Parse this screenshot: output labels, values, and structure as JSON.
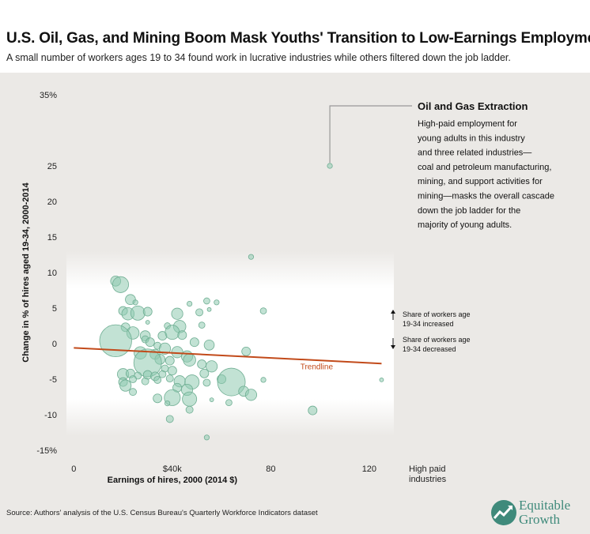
{
  "header": {
    "title": "U.S. Oil, Gas, and Mining Boom Mask Youths' Transition to Low-Earnings Employment",
    "subtitle": "A small number of workers ages 19 to 34 found work in lucrative industries while others filtered down the job ladder."
  },
  "footer": {
    "source": "Source: Authors' analysis of the U.S. Census Bureau's Quarterly Workforce Indicators dataset",
    "logo_line1": "Equitable",
    "logo_line2": "Growth"
  },
  "annotation": {
    "title": "Oil and Gas Extraction",
    "lines": [
      "High-paid employment for",
      "young adults in this industry",
      "and three related industries—",
      "coal and petroleum manufacturing,",
      "mining, and support activities for",
      "mining—masks the overall cascade",
      "down the job ladder for the",
      "majority of young adults."
    ]
  },
  "side_notes": {
    "increased": [
      "Share of workers age",
      "19-34 increased"
    ],
    "decreased": [
      "Share of workers age",
      "19-34 decreased"
    ]
  },
  "colors": {
    "bubble_fill": "#8fcbb0",
    "bubble_stroke": "#6fae93",
    "trendline": "#c24a1a",
    "background": "#ebe9e6"
  },
  "chart_data": {
    "type": "scatter",
    "title": "",
    "xlabel": "Earnings of hires, 2000 (2014 $)",
    "ylabel": "Change in % of hires aged 19-34, 2000-2014",
    "xlim": [
      -3,
      130
    ],
    "ylim": [
      -15,
      35
    ],
    "x_ticks": [
      {
        "value": 0,
        "label": "0"
      },
      {
        "value": 40,
        "label": "$40k"
      },
      {
        "value": 80,
        "label": "80"
      },
      {
        "value": 120,
        "label": "120"
      }
    ],
    "x_extra_label": [
      "High paid",
      "industries"
    ],
    "y_ticks": [
      {
        "value": 35,
        "label": "35%"
      },
      {
        "value": 25,
        "label": "25"
      },
      {
        "value": 20,
        "label": "20"
      },
      {
        "value": 15,
        "label": "15"
      },
      {
        "value": 10,
        "label": "10"
      },
      {
        "value": 5,
        "label": "5"
      },
      {
        "value": 0,
        "label": "0"
      },
      {
        "value": -5,
        "label": "-5"
      },
      {
        "value": -10,
        "label": "-10"
      },
      {
        "value": -15,
        "label": "-15%"
      }
    ],
    "trendline": {
      "label": "Trendline",
      "x": [
        0,
        125
      ],
      "y": [
        -0.6,
        -2.8
      ]
    },
    "points": [
      {
        "x": 104,
        "y": 25,
        "size": 1
      },
      {
        "x": 72,
        "y": 12.2,
        "size": 1
      },
      {
        "x": 17,
        "y": 8.8,
        "size": 4
      },
      {
        "x": 19,
        "y": 8.3,
        "size": 10
      },
      {
        "x": 23,
        "y": 6.2,
        "size": 4
      },
      {
        "x": 25,
        "y": 5.8,
        "size": 1
      },
      {
        "x": 47,
        "y": 5.6,
        "size": 1
      },
      {
        "x": 54,
        "y": 6.0,
        "size": 1.5
      },
      {
        "x": 58,
        "y": 5.8,
        "size": 1
      },
      {
        "x": 55,
        "y": 4.8,
        "size": 0.6
      },
      {
        "x": 20,
        "y": 4.6,
        "size": 3
      },
      {
        "x": 22,
        "y": 4.2,
        "size": 6
      },
      {
        "x": 26,
        "y": 4.3,
        "size": 8
      },
      {
        "x": 30,
        "y": 4.5,
        "size": 3
      },
      {
        "x": 42,
        "y": 4.2,
        "size": 5
      },
      {
        "x": 51,
        "y": 4.4,
        "size": 2
      },
      {
        "x": 77,
        "y": 4.6,
        "size": 1.5
      },
      {
        "x": 30,
        "y": 3.0,
        "size": 0.6
      },
      {
        "x": 38,
        "y": 2.5,
        "size": 1.5
      },
      {
        "x": 43,
        "y": 2.4,
        "size": 6
      },
      {
        "x": 52,
        "y": 2.6,
        "size": 1.5
      },
      {
        "x": 21,
        "y": 2.3,
        "size": 3
      },
      {
        "x": 24,
        "y": 1.5,
        "size": 6
      },
      {
        "x": 29,
        "y": 1.1,
        "size": 4
      },
      {
        "x": 36,
        "y": 1.1,
        "size": 3
      },
      {
        "x": 40,
        "y": 1.6,
        "size": 8
      },
      {
        "x": 44,
        "y": 1.2,
        "size": 3
      },
      {
        "x": 49,
        "y": 0.2,
        "size": 3
      },
      {
        "x": 17,
        "y": 0.4,
        "size": 40
      },
      {
        "x": 29,
        "y": 0.6,
        "size": 2
      },
      {
        "x": 31,
        "y": 0.2,
        "size": 3
      },
      {
        "x": 34,
        "y": -0.3,
        "size": 2
      },
      {
        "x": 37,
        "y": -0.7,
        "size": 5
      },
      {
        "x": 55,
        "y": -0.2,
        "size": 4
      },
      {
        "x": 42,
        "y": -1.2,
        "size": 5
      },
      {
        "x": 27,
        "y": -1.3,
        "size": 6
      },
      {
        "x": 33,
        "y": -1.5,
        "size": 4
      },
      {
        "x": 46,
        "y": -1.8,
        "size": 5
      },
      {
        "x": 70,
        "y": -1.1,
        "size": 3
      },
      {
        "x": 35,
        "y": -2.2,
        "size": 4
      },
      {
        "x": 39,
        "y": -2.4,
        "size": 3
      },
      {
        "x": 47,
        "y": -2.3,
        "size": 6
      },
      {
        "x": 30,
        "y": -2.7,
        "size": 30
      },
      {
        "x": 52,
        "y": -2.9,
        "size": 3
      },
      {
        "x": 56,
        "y": -3.2,
        "size": 5
      },
      {
        "x": 37,
        "y": -3.5,
        "size": 2
      },
      {
        "x": 40,
        "y": -3.8,
        "size": 3
      },
      {
        "x": 20,
        "y": -4.3,
        "size": 5
      },
      {
        "x": 23,
        "y": -4.2,
        "size": 3
      },
      {
        "x": 26,
        "y": -4.5,
        "size": 2
      },
      {
        "x": 30,
        "y": -4.4,
        "size": 3
      },
      {
        "x": 33,
        "y": -4.6,
        "size": 3
      },
      {
        "x": 36,
        "y": -4.3,
        "size": 2
      },
      {
        "x": 53,
        "y": -4.2,
        "size": 3
      },
      {
        "x": 39,
        "y": -4.9,
        "size": 2
      },
      {
        "x": 43,
        "y": -5.3,
        "size": 5
      },
      {
        "x": 48,
        "y": -5.4,
        "size": 8
      },
      {
        "x": 20,
        "y": -5.4,
        "size": 3
      },
      {
        "x": 21,
        "y": -5.9,
        "size": 5
      },
      {
        "x": 24,
        "y": -5.0,
        "size": 2
      },
      {
        "x": 29,
        "y": -5.3,
        "size": 2
      },
      {
        "x": 34,
        "y": -5.1,
        "size": 2
      },
      {
        "x": 54,
        "y": -5.5,
        "size": 2
      },
      {
        "x": 60,
        "y": -5.0,
        "size": 3
      },
      {
        "x": 64,
        "y": -5.4,
        "size": 30
      },
      {
        "x": 77,
        "y": -5.1,
        "size": 1
      },
      {
        "x": 24,
        "y": -6.8,
        "size": 2
      },
      {
        "x": 42,
        "y": -6.2,
        "size": 3
      },
      {
        "x": 46,
        "y": -6.5,
        "size": 5
      },
      {
        "x": 69,
        "y": -6.7,
        "size": 4
      },
      {
        "x": 72,
        "y": -7.2,
        "size": 5
      },
      {
        "x": 34,
        "y": -7.7,
        "size": 3
      },
      {
        "x": 40,
        "y": -7.6,
        "size": 10
      },
      {
        "x": 47,
        "y": -7.8,
        "size": 8
      },
      {
        "x": 56,
        "y": -7.9,
        "size": 0.6
      },
      {
        "x": 38,
        "y": -8.4,
        "size": 1
      },
      {
        "x": 63,
        "y": -8.3,
        "size": 1.5
      },
      {
        "x": 47,
        "y": -9.3,
        "size": 2
      },
      {
        "x": 97,
        "y": -9.4,
        "size": 3
      },
      {
        "x": 39,
        "y": -10.6,
        "size": 2
      },
      {
        "x": 54,
        "y": -13.2,
        "size": 1
      },
      {
        "x": 125,
        "y": -5.1,
        "size": 0.6
      }
    ]
  }
}
